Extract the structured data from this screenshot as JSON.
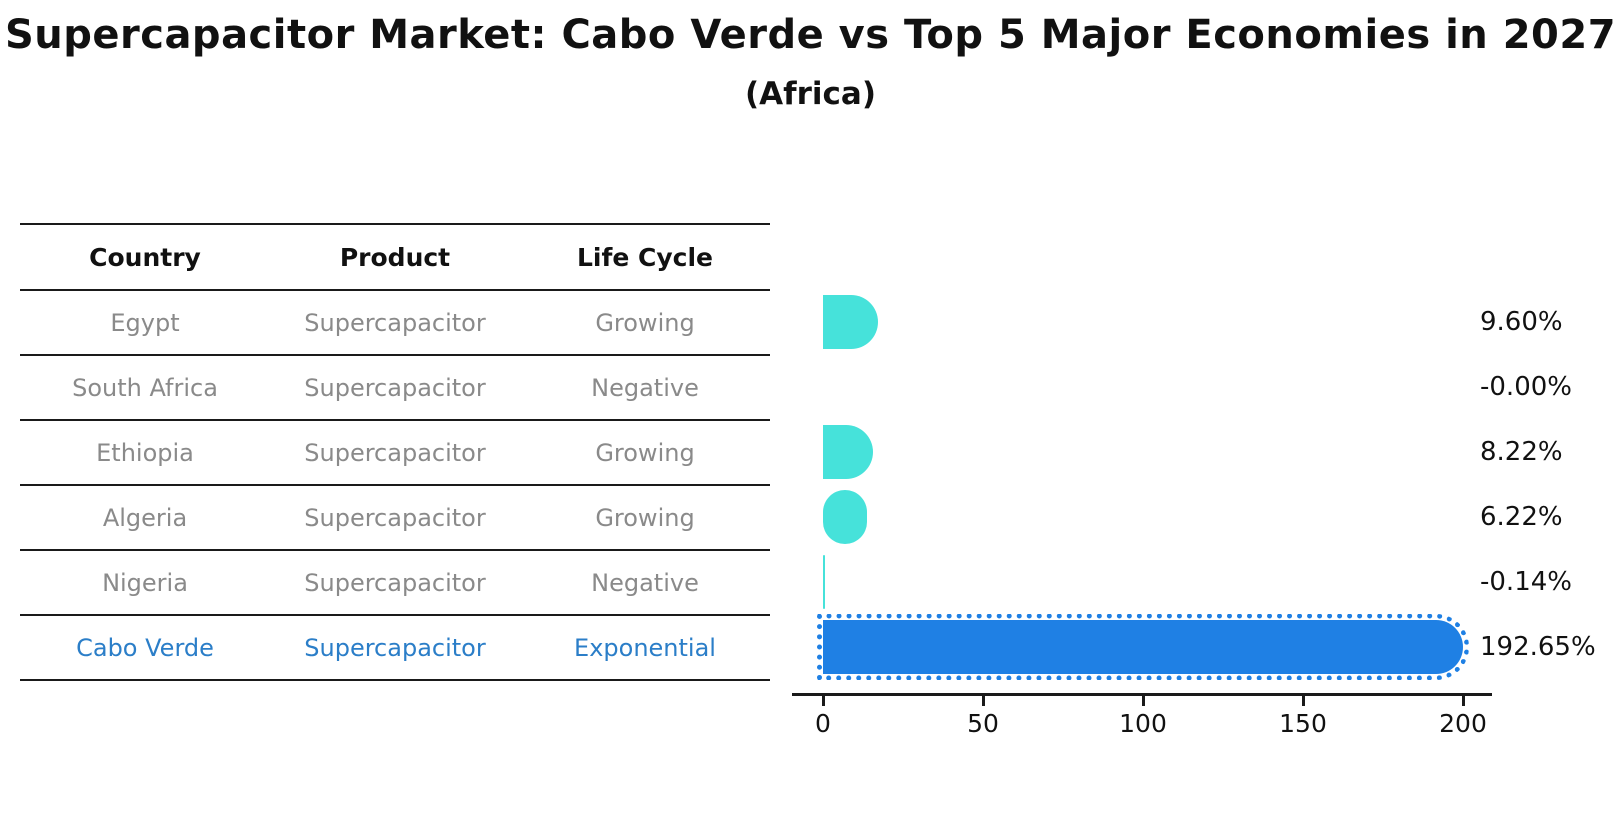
{
  "title": "Supercapacitor Market: Cabo Verde vs Top 5 Major Economies in 2027",
  "subtitle": "(Africa)",
  "table": {
    "headers": [
      "Country",
      "Product",
      "Life Cycle"
    ],
    "rows": [
      {
        "country": "Egypt",
        "product": "Supercapacitor",
        "life_cycle": "Growing"
      },
      {
        "country": "South Africa",
        "product": "Supercapacitor",
        "life_cycle": "Negative"
      },
      {
        "country": "Ethiopia",
        "product": "Supercapacitor",
        "life_cycle": "Growing"
      },
      {
        "country": "Algeria",
        "product": "Supercapacitor",
        "life_cycle": "Growing"
      },
      {
        "country": "Nigeria",
        "product": "Supercapacitor",
        "life_cycle": "Negative"
      },
      {
        "country": "Cabo Verde",
        "product": "Supercapacitor",
        "life_cycle": "Exponential"
      }
    ],
    "highlight_row_index": 5
  },
  "chart_data": {
    "type": "bar",
    "orientation": "horizontal",
    "title": "Supercapacitor Market: Cabo Verde vs Top 5 Major Economies in 2027 (Africa)",
    "categories": [
      "Egypt",
      "South Africa",
      "Ethiopia",
      "Algeria",
      "Nigeria",
      "Cabo Verde"
    ],
    "values": [
      9.6,
      -0.0,
      8.22,
      6.22,
      -0.14,
      192.65
    ],
    "value_labels": [
      "9.60%",
      "-0.00%",
      "8.22%",
      "6.22%",
      "-0.14%",
      "192.65%"
    ],
    "x_ticks": [
      "0",
      "50",
      "100",
      "150",
      "200"
    ],
    "xlim": [
      -10,
      210
    ],
    "ylabel": "",
    "xlabel": "",
    "grid": false,
    "legend": "none",
    "highlight_index": 5,
    "colors": {
      "bar": "#46e2da",
      "bar_highlight": "#1f80e4",
      "highlight_text": "#2b7ec8",
      "row_text": "#8a8a8a",
      "axis_text": "#111111"
    }
  }
}
